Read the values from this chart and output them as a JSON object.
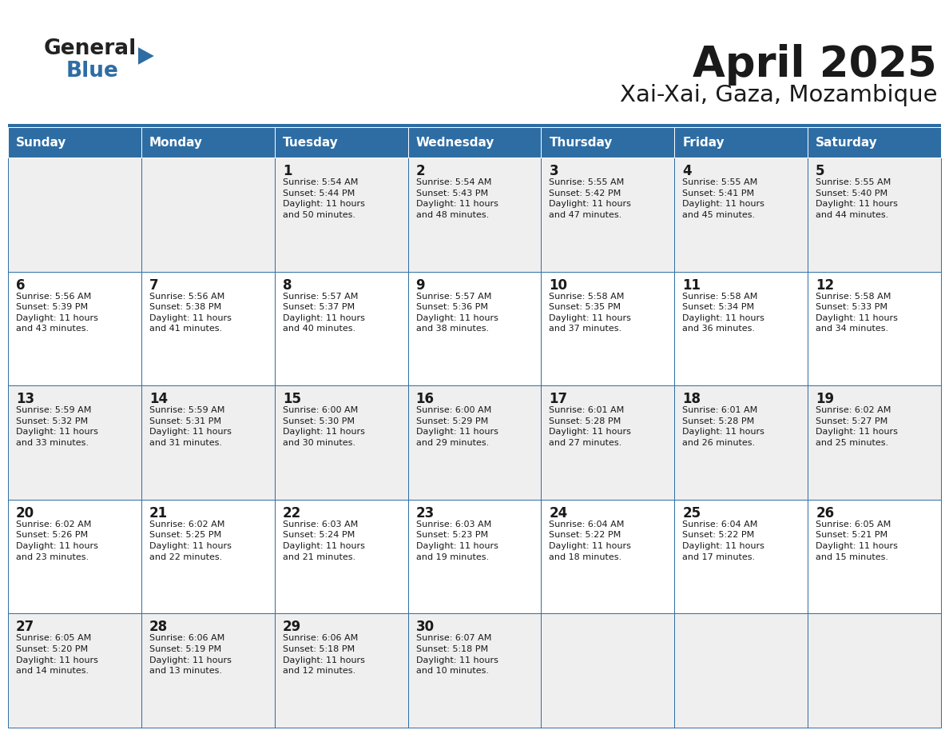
{
  "title": "April 2025",
  "subtitle": "Xai-Xai, Gaza, Mozambique",
  "header_bg": "#2E6DA4",
  "header_text": "#FFFFFF",
  "cell_bg_odd": "#EFEFEF",
  "cell_bg_even": "#FFFFFF",
  "border_color": "#2E6DA4",
  "text_color": "#1a1a1a",
  "days_of_week": [
    "Sunday",
    "Monday",
    "Tuesday",
    "Wednesday",
    "Thursday",
    "Friday",
    "Saturday"
  ],
  "calendar_data": [
    [
      {
        "day": "",
        "info": ""
      },
      {
        "day": "",
        "info": ""
      },
      {
        "day": "1",
        "info": "Sunrise: 5:54 AM\nSunset: 5:44 PM\nDaylight: 11 hours\nand 50 minutes."
      },
      {
        "day": "2",
        "info": "Sunrise: 5:54 AM\nSunset: 5:43 PM\nDaylight: 11 hours\nand 48 minutes."
      },
      {
        "day": "3",
        "info": "Sunrise: 5:55 AM\nSunset: 5:42 PM\nDaylight: 11 hours\nand 47 minutes."
      },
      {
        "day": "4",
        "info": "Sunrise: 5:55 AM\nSunset: 5:41 PM\nDaylight: 11 hours\nand 45 minutes."
      },
      {
        "day": "5",
        "info": "Sunrise: 5:55 AM\nSunset: 5:40 PM\nDaylight: 11 hours\nand 44 minutes."
      }
    ],
    [
      {
        "day": "6",
        "info": "Sunrise: 5:56 AM\nSunset: 5:39 PM\nDaylight: 11 hours\nand 43 minutes."
      },
      {
        "day": "7",
        "info": "Sunrise: 5:56 AM\nSunset: 5:38 PM\nDaylight: 11 hours\nand 41 minutes."
      },
      {
        "day": "8",
        "info": "Sunrise: 5:57 AM\nSunset: 5:37 PM\nDaylight: 11 hours\nand 40 minutes."
      },
      {
        "day": "9",
        "info": "Sunrise: 5:57 AM\nSunset: 5:36 PM\nDaylight: 11 hours\nand 38 minutes."
      },
      {
        "day": "10",
        "info": "Sunrise: 5:58 AM\nSunset: 5:35 PM\nDaylight: 11 hours\nand 37 minutes."
      },
      {
        "day": "11",
        "info": "Sunrise: 5:58 AM\nSunset: 5:34 PM\nDaylight: 11 hours\nand 36 minutes."
      },
      {
        "day": "12",
        "info": "Sunrise: 5:58 AM\nSunset: 5:33 PM\nDaylight: 11 hours\nand 34 minutes."
      }
    ],
    [
      {
        "day": "13",
        "info": "Sunrise: 5:59 AM\nSunset: 5:32 PM\nDaylight: 11 hours\nand 33 minutes."
      },
      {
        "day": "14",
        "info": "Sunrise: 5:59 AM\nSunset: 5:31 PM\nDaylight: 11 hours\nand 31 minutes."
      },
      {
        "day": "15",
        "info": "Sunrise: 6:00 AM\nSunset: 5:30 PM\nDaylight: 11 hours\nand 30 minutes."
      },
      {
        "day": "16",
        "info": "Sunrise: 6:00 AM\nSunset: 5:29 PM\nDaylight: 11 hours\nand 29 minutes."
      },
      {
        "day": "17",
        "info": "Sunrise: 6:01 AM\nSunset: 5:28 PM\nDaylight: 11 hours\nand 27 minutes."
      },
      {
        "day": "18",
        "info": "Sunrise: 6:01 AM\nSunset: 5:28 PM\nDaylight: 11 hours\nand 26 minutes."
      },
      {
        "day": "19",
        "info": "Sunrise: 6:02 AM\nSunset: 5:27 PM\nDaylight: 11 hours\nand 25 minutes."
      }
    ],
    [
      {
        "day": "20",
        "info": "Sunrise: 6:02 AM\nSunset: 5:26 PM\nDaylight: 11 hours\nand 23 minutes."
      },
      {
        "day": "21",
        "info": "Sunrise: 6:02 AM\nSunset: 5:25 PM\nDaylight: 11 hours\nand 22 minutes."
      },
      {
        "day": "22",
        "info": "Sunrise: 6:03 AM\nSunset: 5:24 PM\nDaylight: 11 hours\nand 21 minutes."
      },
      {
        "day": "23",
        "info": "Sunrise: 6:03 AM\nSunset: 5:23 PM\nDaylight: 11 hours\nand 19 minutes."
      },
      {
        "day": "24",
        "info": "Sunrise: 6:04 AM\nSunset: 5:22 PM\nDaylight: 11 hours\nand 18 minutes."
      },
      {
        "day": "25",
        "info": "Sunrise: 6:04 AM\nSunset: 5:22 PM\nDaylight: 11 hours\nand 17 minutes."
      },
      {
        "day": "26",
        "info": "Sunrise: 6:05 AM\nSunset: 5:21 PM\nDaylight: 11 hours\nand 15 minutes."
      }
    ],
    [
      {
        "day": "27",
        "info": "Sunrise: 6:05 AM\nSunset: 5:20 PM\nDaylight: 11 hours\nand 14 minutes."
      },
      {
        "day": "28",
        "info": "Sunrise: 6:06 AM\nSunset: 5:19 PM\nDaylight: 11 hours\nand 13 minutes."
      },
      {
        "day": "29",
        "info": "Sunrise: 6:06 AM\nSunset: 5:18 PM\nDaylight: 11 hours\nand 12 minutes."
      },
      {
        "day": "30",
        "info": "Sunrise: 6:07 AM\nSunset: 5:18 PM\nDaylight: 11 hours\nand 10 minutes."
      },
      {
        "day": "",
        "info": ""
      },
      {
        "day": "",
        "info": ""
      },
      {
        "day": "",
        "info": ""
      }
    ]
  ],
  "logo_text1": "General",
  "logo_text2": "Blue",
  "logo_text1_color": "#222222",
  "logo_text2_color": "#2E6DA4",
  "logo_triangle_color": "#2E6DA4",
  "fig_width": 11.88,
  "fig_height": 9.18,
  "dpi": 100
}
